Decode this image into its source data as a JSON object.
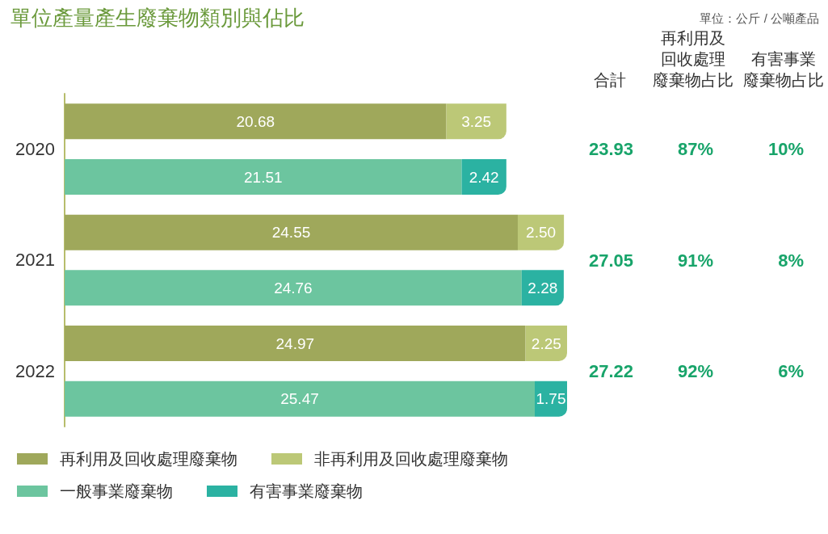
{
  "chart_data": {
    "type": "bar",
    "orientation": "horizontal",
    "stacked": true,
    "title": "單位產量產生廢棄物類別與佔比",
    "subtitle": "單位：公斤 / 公噸產品",
    "categories": [
      "2020",
      null,
      "2021",
      null,
      "2022",
      null
    ],
    "series": [
      {
        "name": "再利用及回收處理廢棄物",
        "color": "#9fa85b",
        "values": [
          20.68,
          null,
          24.55,
          null,
          24.97,
          null
        ],
        "value_labels": [
          "20.68",
          null,
          "24.55",
          null,
          "24.97",
          null
        ]
      },
      {
        "name": "非再利用及回收處理廢棄物",
        "color": "#bcc877",
        "values": [
          3.25,
          null,
          2.5,
          null,
          2.25,
          null
        ],
        "value_labels": [
          "3.25",
          null,
          "2.50",
          null,
          "2.25",
          null
        ]
      },
      {
        "name": "一般事業廢棄物",
        "color": "#6cc59f",
        "values": [
          null,
          21.51,
          null,
          24.76,
          null,
          25.47
        ],
        "value_labels": [
          null,
          "21.51",
          null,
          "24.76",
          null,
          "25.47"
        ]
      },
      {
        "name": "有害事業廢棄物",
        "color": "#2bb2a2",
        "values": [
          null,
          2.42,
          null,
          2.28,
          null,
          1.75
        ],
        "value_labels": [
          null,
          "2.42",
          null,
          "2.28",
          null,
          "1.75"
        ]
      }
    ],
    "annotations": [
      "合計",
      "再利用及回收處理廢棄物占比",
      "有害事業廢棄物占比",
      "23.93",
      "87%",
      "10%",
      "27.05",
      "91%",
      "8%",
      "27.22",
      "92%",
      "6%"
    ],
    "legend": "bottom",
    "tick_labels": "y"
  }
}
